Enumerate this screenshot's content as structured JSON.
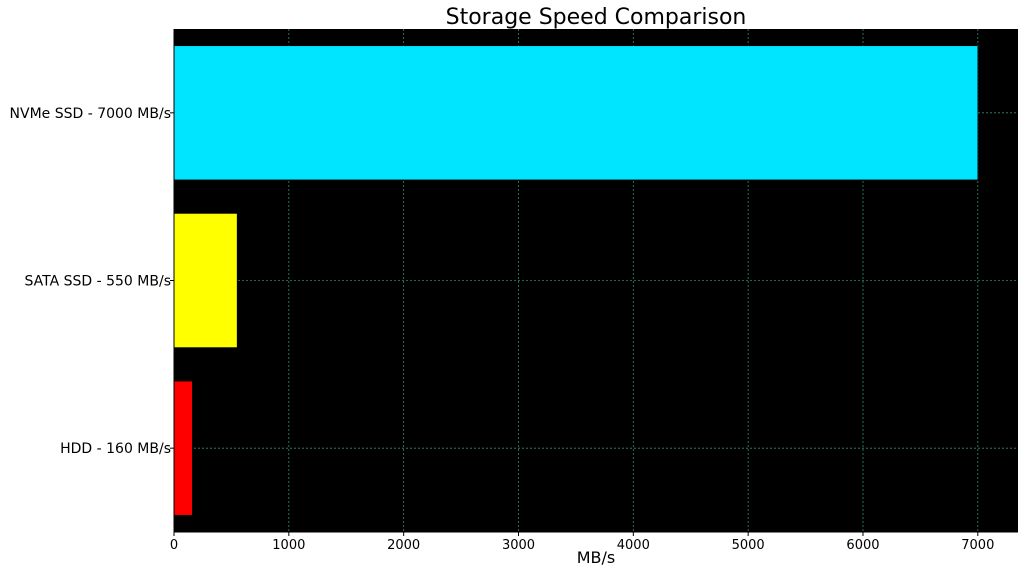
{
  "chart_data": {
    "type": "bar",
    "orientation": "horizontal",
    "title": "Storage Speed Comparison",
    "xlabel": "MB/s",
    "ylabel": "",
    "categories": [
      "HDD - 160 MB/s",
      "SATA SSD - 550 MB/s",
      "NVMe SSD - 7000 MB/s"
    ],
    "values": [
      160,
      550,
      7000
    ],
    "bar_colors": [
      "#ff0000",
      "#ffff00",
      "#00e5ff"
    ],
    "xlim": [
      0,
      7350
    ],
    "xticks": [
      0,
      1000,
      2000,
      3000,
      4000,
      5000,
      6000,
      7000
    ],
    "grid": true,
    "grid_color": "#2f8f6a",
    "plot_background": "#000000",
    "legend": "none"
  }
}
